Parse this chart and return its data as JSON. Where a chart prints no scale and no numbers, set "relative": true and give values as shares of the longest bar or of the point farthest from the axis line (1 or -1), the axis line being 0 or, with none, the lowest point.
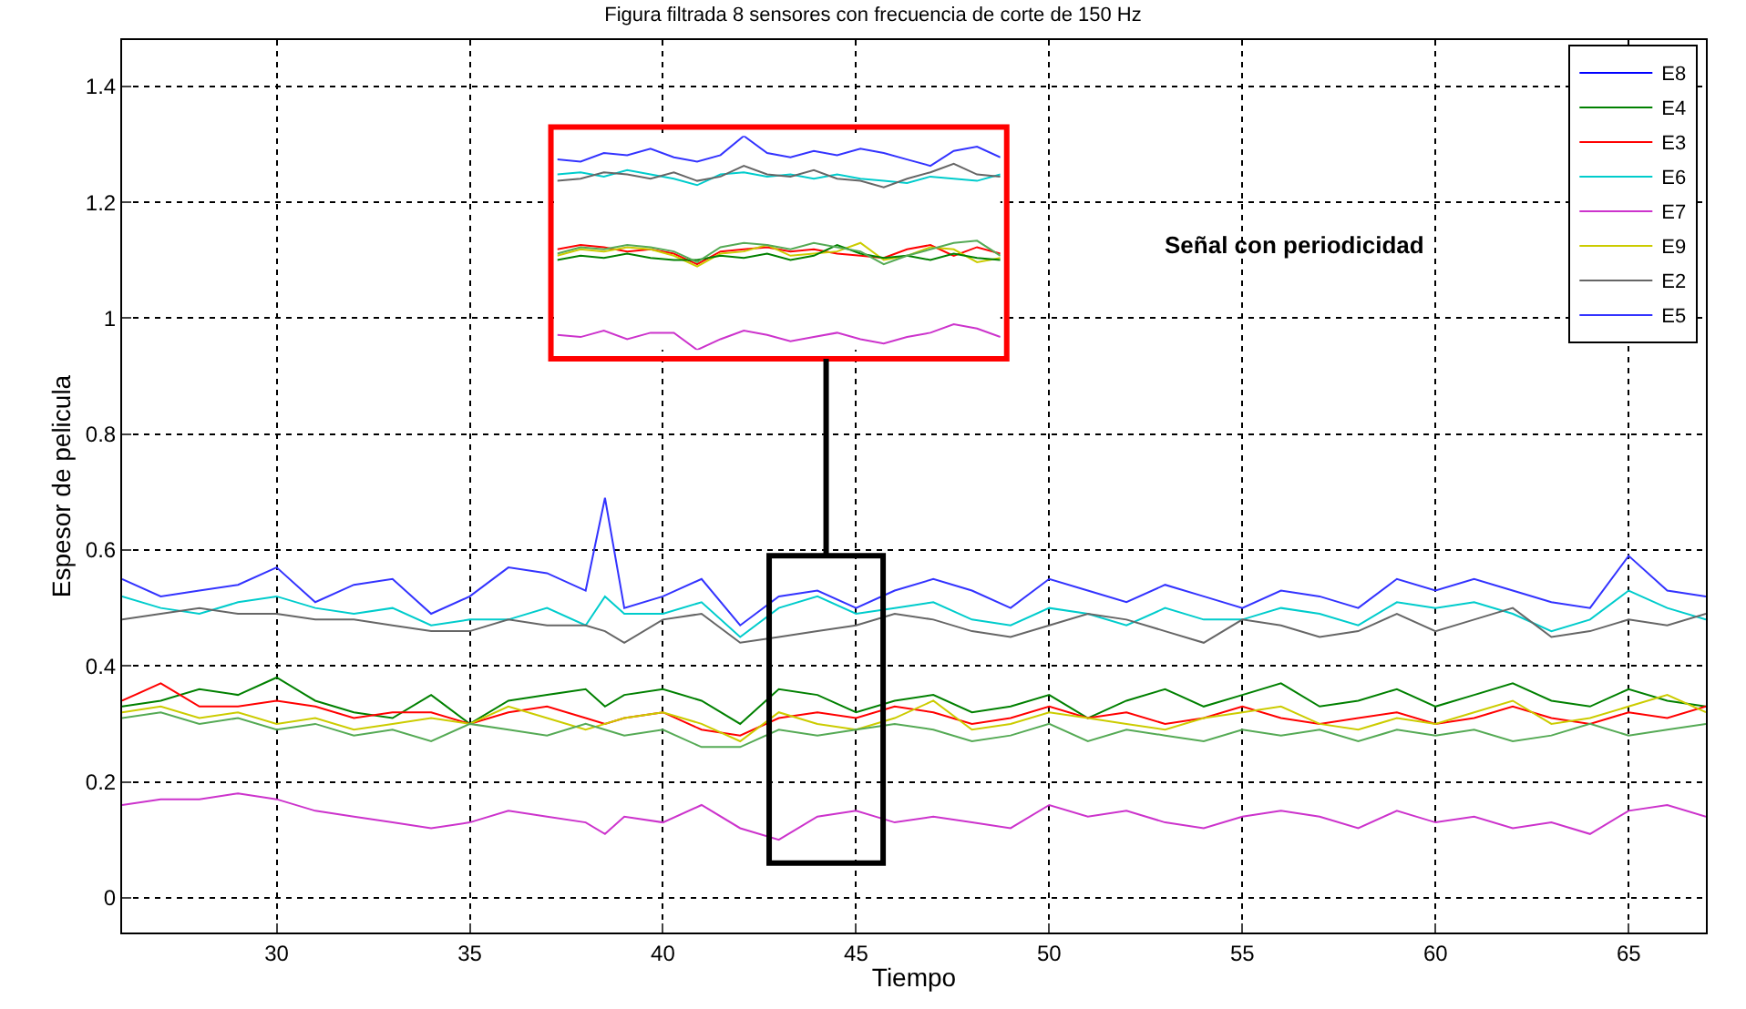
{
  "chart_data": [
    {
      "type": "line",
      "title": "Figura filtrada 8 sensores con frecuencia de corte de 150 Hz",
      "xlabel": "Tiempo",
      "ylabel": "Espesor de pelicula",
      "x": [
        26,
        27,
        28,
        29,
        30,
        31,
        32,
        33,
        34,
        35,
        36,
        37,
        38,
        38.5,
        39,
        40,
        41,
        42,
        43,
        44,
        45,
        46,
        47,
        48,
        49,
        50,
        51,
        52,
        53,
        54,
        55,
        56,
        57,
        58,
        59,
        60,
        61,
        62,
        63,
        64,
        65,
        66,
        67
      ],
      "series": [
        {
          "name": "E8",
          "color": "#0000ff",
          "values": [
            null,
            null,
            null,
            null,
            null,
            null,
            null,
            null,
            null,
            null,
            null,
            null,
            null,
            null,
            null,
            null,
            null,
            null,
            null,
            null,
            null,
            null,
            null,
            null,
            null,
            null,
            null,
            null,
            null,
            null,
            null,
            null,
            null,
            null,
            null,
            null,
            null,
            null,
            null,
            null,
            null,
            null,
            null
          ]
        },
        {
          "name": "E4",
          "color": "#008000",
          "values": [
            0.33,
            0.34,
            0.36,
            0.35,
            0.38,
            0.34,
            0.32,
            0.31,
            0.35,
            0.3,
            0.34,
            0.35,
            0.36,
            0.33,
            0.35,
            0.36,
            0.34,
            0.3,
            0.36,
            0.35,
            0.32,
            0.34,
            0.35,
            0.32,
            0.33,
            0.35,
            0.31,
            0.34,
            0.36,
            0.33,
            0.35,
            0.37,
            0.33,
            0.34,
            0.36,
            0.33,
            0.35,
            0.37,
            0.34,
            0.33,
            0.36,
            0.34,
            0.33
          ]
        },
        {
          "name": "E3",
          "color": "#ff0000",
          "values": [
            0.34,
            0.37,
            0.33,
            0.33,
            0.34,
            0.33,
            0.31,
            0.32,
            0.32,
            0.3,
            0.32,
            0.33,
            0.31,
            0.3,
            0.31,
            0.32,
            0.29,
            0.28,
            0.31,
            0.32,
            0.31,
            0.33,
            0.32,
            0.3,
            0.31,
            0.33,
            0.31,
            0.32,
            0.3,
            0.31,
            0.33,
            0.31,
            0.3,
            0.31,
            0.32,
            0.3,
            0.31,
            0.33,
            0.31,
            0.3,
            0.32,
            0.31,
            0.33
          ]
        },
        {
          "name": "E6",
          "color": "#00cccc",
          "values": [
            0.52,
            0.5,
            0.49,
            0.51,
            0.52,
            0.5,
            0.49,
            0.5,
            0.47,
            0.48,
            0.48,
            0.5,
            0.47,
            0.52,
            0.49,
            0.49,
            0.51,
            0.45,
            0.5,
            0.52,
            0.49,
            0.5,
            0.51,
            0.48,
            0.47,
            0.5,
            0.49,
            0.47,
            0.5,
            0.48,
            0.48,
            0.5,
            0.49,
            0.47,
            0.51,
            0.5,
            0.51,
            0.49,
            0.46,
            0.48,
            0.53,
            0.5,
            0.48
          ]
        },
        {
          "name": "E7",
          "color": "#cc33cc",
          "values": [
            0.16,
            0.17,
            0.17,
            0.18,
            0.17,
            0.15,
            0.14,
            0.13,
            0.12,
            0.13,
            0.15,
            0.14,
            0.13,
            0.11,
            0.14,
            0.13,
            0.16,
            0.12,
            0.1,
            0.14,
            0.15,
            0.13,
            0.14,
            0.13,
            0.12,
            0.16,
            0.14,
            0.15,
            0.13,
            0.12,
            0.14,
            0.15,
            0.14,
            0.12,
            0.15,
            0.13,
            0.14,
            0.12,
            0.13,
            0.11,
            0.15,
            0.16,
            0.14
          ]
        },
        {
          "name": "E9",
          "color": "#cccc00",
          "values": [
            0.32,
            0.33,
            0.31,
            0.32,
            0.3,
            0.31,
            0.29,
            0.3,
            0.31,
            0.3,
            0.33,
            0.31,
            0.29,
            0.3,
            0.31,
            0.32,
            0.3,
            0.27,
            0.32,
            0.3,
            0.29,
            0.31,
            0.34,
            0.29,
            0.3,
            0.32,
            0.31,
            0.3,
            0.29,
            0.31,
            0.32,
            0.33,
            0.3,
            0.29,
            0.31,
            0.3,
            0.32,
            0.34,
            0.3,
            0.31,
            0.33,
            0.35,
            0.32
          ]
        },
        {
          "name": "E2",
          "color": "#666666",
          "values": [
            0.48,
            0.49,
            0.5,
            0.49,
            0.49,
            0.48,
            0.48,
            0.47,
            0.46,
            0.46,
            0.48,
            0.47,
            0.47,
            0.46,
            0.44,
            0.48,
            0.49,
            0.44,
            0.45,
            0.46,
            0.47,
            0.49,
            0.48,
            0.46,
            0.45,
            0.47,
            0.49,
            0.48,
            0.46,
            0.44,
            0.48,
            0.47,
            0.45,
            0.46,
            0.49,
            0.46,
            0.48,
            0.5,
            0.45,
            0.46,
            0.48,
            0.47,
            0.49
          ]
        },
        {
          "name": "E5",
          "color": "#3333ff",
          "values": [
            0.55,
            0.52,
            0.53,
            0.54,
            0.57,
            0.51,
            0.54,
            0.55,
            0.49,
            0.52,
            0.57,
            0.56,
            0.53,
            0.69,
            0.5,
            0.52,
            0.55,
            0.47,
            0.52,
            0.53,
            0.5,
            0.53,
            0.55,
            0.53,
            0.5,
            0.55,
            0.53,
            0.51,
            0.54,
            0.52,
            0.5,
            0.53,
            0.52,
            0.5,
            0.55,
            0.53,
            0.55,
            0.53,
            0.51,
            0.5,
            0.59,
            0.53,
            0.52
          ]
        },
        {
          "color": "#55aa55",
          "values": [
            0.31,
            0.32,
            0.3,
            0.31,
            0.29,
            0.3,
            0.28,
            0.29,
            0.27,
            0.3,
            0.29,
            0.28,
            0.3,
            0.29,
            0.28,
            0.29,
            0.26,
            0.26,
            0.29,
            0.28,
            0.29,
            0.3,
            0.29,
            0.27,
            0.28,
            0.3,
            0.27,
            0.29,
            0.28,
            0.27,
            0.29,
            0.28,
            0.29,
            0.27,
            0.29,
            0.28,
            0.29,
            0.27,
            0.28,
            0.3,
            0.28,
            0.29,
            0.3
          ]
        }
      ],
      "xlim": [
        26,
        67
      ],
      "xticks": [
        30,
        35,
        40,
        45,
        50,
        55,
        60,
        65
      ],
      "ylim": [
        -0.06,
        1.48
      ],
      "yticks": [
        0,
        0.2,
        0.4,
        0.6,
        0.8,
        1,
        1.2,
        1.4
      ],
      "grid": true,
      "legend": "top right",
      "line_style": "solid",
      "marker": "none",
      "annotations": [
        "Señal con periodicidad"
      ]
    },
    {
      "type": "line",
      "relative": true,
      "categories": [
        null,
        null,
        null,
        null,
        null,
        null,
        null,
        null,
        null,
        null,
        null,
        null,
        null,
        null,
        null,
        null,
        null,
        null,
        null,
        null
      ],
      "series": [
        {
          "color": "#3333ff",
          "values": [
            0.89,
            0.88,
            0.92,
            0.91,
            0.94,
            0.9,
            0.88,
            0.91,
            1,
            0.92,
            0.9,
            0.93,
            0.91,
            0.94,
            0.92,
            0.89,
            0.86,
            0.93,
            0.95,
            0.9
          ]
        },
        {
          "color": "#00cccc",
          "values": [
            0.82,
            0.83,
            0.81,
            0.84,
            0.82,
            0.8,
            0.77,
            0.82,
            0.83,
            0.81,
            0.82,
            0.8,
            0.82,
            0.8,
            0.79,
            0.78,
            0.81,
            0.8,
            0.79,
            0.82
          ]
        },
        {
          "color": "#666666",
          "values": [
            0.79,
            0.8,
            0.83,
            0.82,
            0.8,
            0.83,
            0.79,
            0.81,
            0.86,
            0.82,
            0.81,
            0.84,
            0.8,
            0.79,
            0.76,
            0.8,
            0.83,
            0.87,
            0.82,
            0.81
          ]
        },
        {
          "color": "#ff0000",
          "values": [
            0.47,
            0.49,
            0.48,
            0.46,
            0.47,
            0.45,
            0.4,
            0.46,
            0.47,
            0.48,
            0.46,
            0.47,
            0.45,
            0.44,
            0.43,
            0.47,
            0.49,
            0.44,
            0.48,
            0.45
          ]
        },
        {
          "color": "#cccc00",
          "values": [
            0.44,
            0.47,
            0.46,
            0.48,
            0.47,
            0.44,
            0.39,
            0.45,
            0.46,
            0.49,
            0.44,
            0.45,
            0.46,
            0.5,
            0.42,
            0.44,
            0.48,
            0.47,
            0.41,
            0.43
          ]
        },
        {
          "color": "#008000",
          "values": [
            0.42,
            0.44,
            0.43,
            0.45,
            0.43,
            0.42,
            0.42,
            0.44,
            0.43,
            0.45,
            0.42,
            0.44,
            0.49,
            0.45,
            0.43,
            0.44,
            0.42,
            0.45,
            0.43,
            0.42
          ]
        },
        {
          "color": "#55aa55",
          "values": [
            0.45,
            0.48,
            0.47,
            0.49,
            0.48,
            0.46,
            0.41,
            0.48,
            0.5,
            0.49,
            0.47,
            0.5,
            0.48,
            0.46,
            0.4,
            0.44,
            0.47,
            0.5,
            0.51,
            0.44
          ]
        },
        {
          "color": "#cc33cc",
          "values": [
            0.07,
            0.06,
            0.09,
            0.05,
            0.08,
            0.08,
            0,
            0.05,
            0.09,
            0.07,
            0.04,
            0.06,
            0.08,
            0.05,
            0.03,
            0.06,
            0.08,
            0.12,
            0.1,
            0.06
          ]
        }
      ],
      "grid": false
    }
  ]
}
